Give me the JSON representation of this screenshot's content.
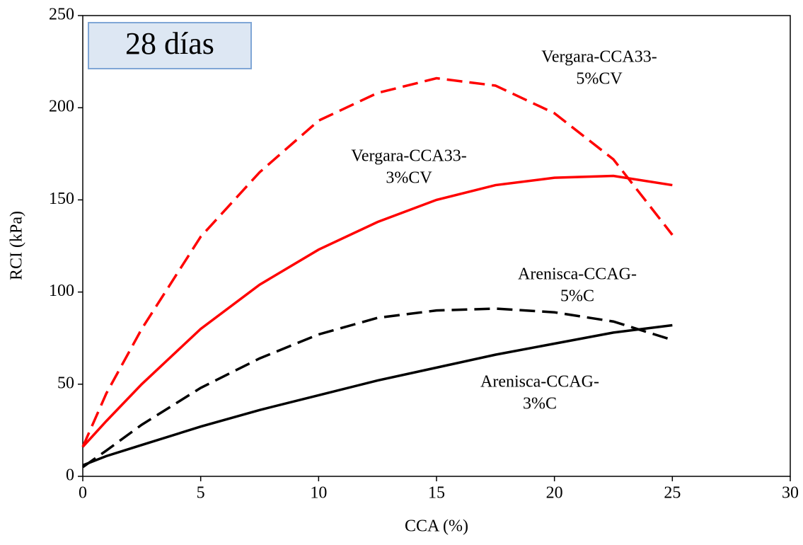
{
  "chart_data": {
    "type": "line",
    "badge": "28 días",
    "xlabel": "CCA (%)",
    "ylabel": "RCI (kPa)",
    "xlim": [
      0,
      30
    ],
    "xticks": [
      0,
      5,
      10,
      15,
      20,
      25,
      30
    ],
    "ylim": [
      0,
      250
    ],
    "yticks": [
      0,
      50,
      100,
      150,
      200,
      250
    ],
    "x": [
      0,
      1,
      2.5,
      5,
      7.5,
      10,
      12.5,
      15,
      17.5,
      20,
      22.5,
      25
    ],
    "series": [
      {
        "color": "#ff0000",
        "style": "dashed",
        "values": [
          16,
          45,
          80,
          130,
          165,
          193,
          208,
          216,
          212,
          197,
          172,
          131
        ]
      },
      {
        "color": "#ff0000",
        "style": "solid",
        "values": [
          16,
          30,
          50,
          80,
          104,
          123,
          138,
          150,
          158,
          162,
          163,
          158
        ]
      },
      {
        "color": "#000000",
        "style": "dashed",
        "values": [
          5,
          14,
          28,
          48,
          64,
          77,
          86,
          90,
          91,
          89,
          84,
          74
        ]
      },
      {
        "color": "#000000",
        "style": "solid",
        "values": [
          6,
          11,
          17,
          27,
          36,
          44,
          52,
          59,
          66,
          72,
          78,
          82
        ]
      }
    ],
    "annotations": [
      [
        "Vergara-CCA33-",
        "5%CV"
      ],
      [
        "Vergara-CCA33-",
        "3%CV"
      ],
      [
        "Arenisca-CCAG-",
        "5%C"
      ],
      [
        "Arenisca-CCAG-",
        "3%C"
      ]
    ]
  }
}
